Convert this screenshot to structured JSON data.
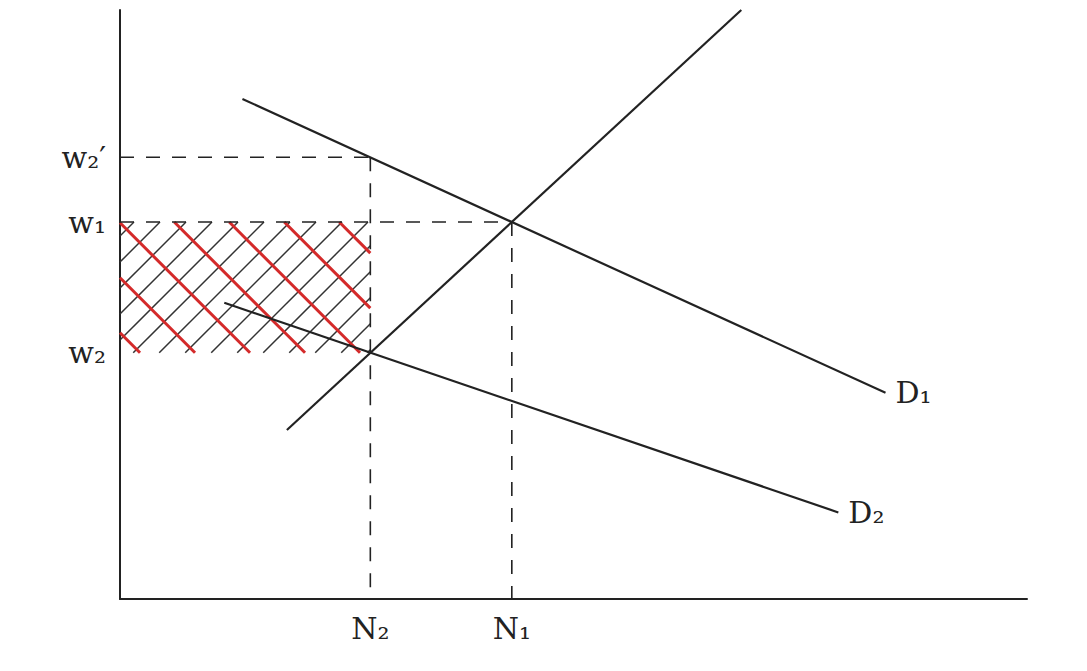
{
  "chart_data": {
    "type": "line",
    "xlim": [
      0,
      100
    ],
    "ylim": [
      0,
      100
    ],
    "xticks": [
      {
        "value": 27.6,
        "label": "N₂"
      },
      {
        "value": 43.2,
        "label": "N₁"
      }
    ],
    "yticks": [
      {
        "value": 41.8,
        "label": "w₂"
      },
      {
        "value": 64,
        "label": "w₁"
      },
      {
        "value": 75,
        "label": "w₂′"
      }
    ],
    "grid": false,
    "series": [
      {
        "name": "D₁",
        "color": "#222222",
        "line_style": "solid",
        "x": [
          13.5,
          84.4
        ],
        "values": [
          84.9,
          35
        ]
      },
      {
        "name": "D₂",
        "color": "#222222",
        "line_style": "solid",
        "x": [
          11.5,
          79.2
        ],
        "values": [
          50.3,
          14.7
        ]
      },
      {
        "color": "#222222",
        "line_style": "solid",
        "x": [
          18.4,
          68.5
        ],
        "values": [
          28.7,
          100
        ]
      },
      {
        "color": "#222222",
        "line_style": "dashed",
        "x": [
          0,
          27.6
        ],
        "values": [
          75,
          75
        ]
      },
      {
        "color": "#222222",
        "line_style": "dashed",
        "x": [
          27.6,
          27.6
        ],
        "values": [
          75,
          0
        ]
      },
      {
        "color": "#222222",
        "line_style": "dashed",
        "x": [
          0,
          43.2
        ],
        "values": [
          64,
          64
        ]
      },
      {
        "color": "#222222",
        "line_style": "dashed",
        "x": [
          43.2,
          43.2
        ],
        "values": [
          64,
          0
        ]
      }
    ],
    "shaded_area": {
      "x": [
        0,
        27.6
      ],
      "y": [
        41.8,
        64
      ],
      "colors": [
        "#333333",
        "#d42a2a"
      ]
    }
  }
}
